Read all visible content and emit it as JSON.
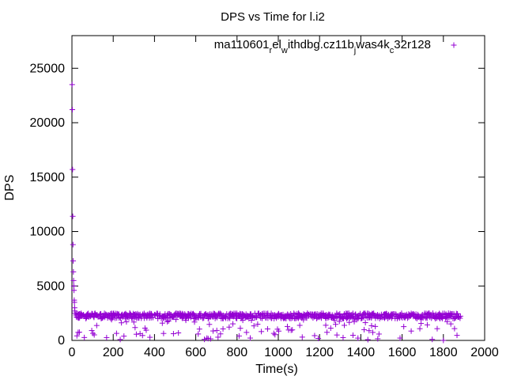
{
  "chart_data": {
    "type": "scatter",
    "title": "DPS vs Time for l.i2",
    "xlabel": "Time(s)",
    "ylabel": "DPS",
    "xlim": [
      0,
      2000
    ],
    "ylim": [
      0,
      28000
    ],
    "xticks": [
      0,
      200,
      400,
      600,
      800,
      1000,
      1200,
      1400,
      1600,
      1800,
      2000
    ],
    "yticks": [
      0,
      5000,
      10000,
      15000,
      20000,
      25000
    ],
    "grid": false,
    "legend_position": "top-right",
    "marker": "+",
    "series": [
      {
        "name": "ma110601relwithdbg.cz11bjwas4kc32r128",
        "color": "#9400d3",
        "legend_parts": [
          {
            "text": "ma110601",
            "sub": false
          },
          {
            "text": "r",
            "sub": true
          },
          {
            "text": "el",
            "sub": false
          },
          {
            "text": "w",
            "sub": true
          },
          {
            "text": "ithdbg.cz11b",
            "sub": false
          },
          {
            "text": "j",
            "sub": true
          },
          {
            "text": "was4k",
            "sub": false
          },
          {
            "text": "c",
            "sub": true
          },
          {
            "text": "32r128",
            "sub": false
          }
        ],
        "initial_points": [
          [
            1,
            23500
          ],
          [
            2,
            21200
          ],
          [
            3,
            15700
          ],
          [
            4,
            11400
          ],
          [
            5,
            8800
          ],
          [
            6,
            7300
          ],
          [
            7,
            6300
          ],
          [
            8,
            5500
          ],
          [
            9,
            5000
          ],
          [
            10,
            4600
          ],
          [
            11,
            3700
          ],
          [
            12,
            3500
          ],
          [
            13,
            3000
          ],
          [
            14,
            2700
          ],
          [
            15,
            2500
          ]
        ],
        "steady_band": {
          "x_start": 18,
          "x_end": 1880,
          "x_step": 6,
          "main_min": 2000,
          "main_max": 2500,
          "outlier_min": 0,
          "outlier_max": 2000
        }
      }
    ]
  }
}
